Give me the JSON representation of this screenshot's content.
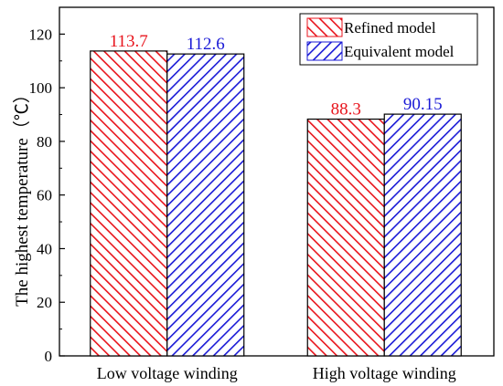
{
  "chart_data": {
    "type": "bar",
    "categories": [
      "Low voltage winding",
      "High voltage winding"
    ],
    "series": [
      {
        "name": "Refined model",
        "values": [
          113.7,
          88.3
        ],
        "labels": [
          "113.7",
          "88.3"
        ],
        "color": "#e8141c",
        "hatch": "forward-diagonal"
      },
      {
        "name": "Equivalent model",
        "values": [
          112.6,
          90.15
        ],
        "labels": [
          "112.6",
          "90.15"
        ],
        "color": "#1a1ad6",
        "hatch": "backward-diagonal"
      }
    ],
    "title": "",
    "xlabel": "",
    "ylabel": "The highest temperature（℃）",
    "ylim": [
      0,
      130
    ],
    "yticks": [
      0,
      20,
      40,
      60,
      80,
      100,
      120
    ],
    "grid": false,
    "legend_position": "top-right"
  }
}
